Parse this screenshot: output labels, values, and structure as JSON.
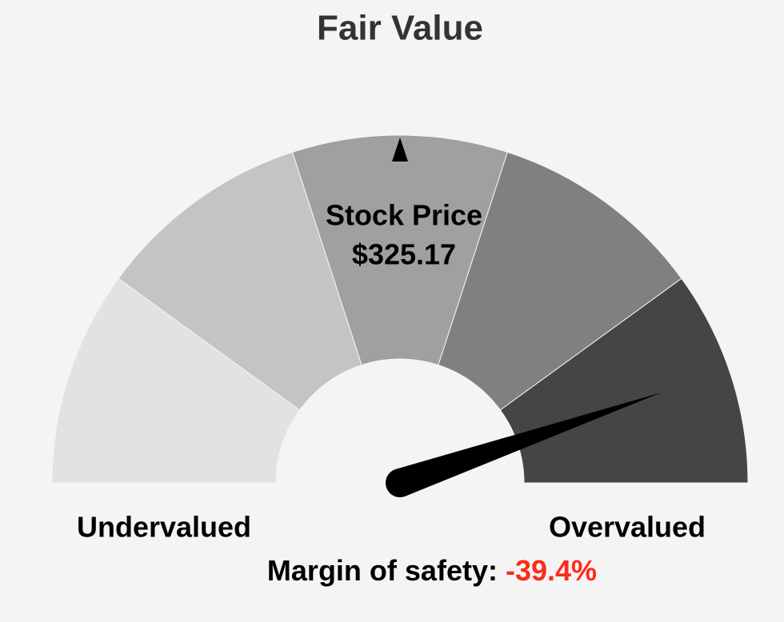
{
  "chart_data": {
    "type": "gauge",
    "title": "Fair Value",
    "bands": [
      "#e2e2e2",
      "#c4c4c4",
      "#a0a0a0",
      "#808080",
      "#454545"
    ],
    "lim": [
      50,
      -50
    ],
    "price_label": "Stock Price",
    "price": "$325.17",
    "left_label": "Undervalued",
    "right_label": "Overvalued",
    "needle": {
      "label": "Margin of safety:",
      "value": -39.4,
      "value_label": "-39.4%",
      "label_color": "#000000",
      "value_color": "#ff2a1a",
      "color": "#000000"
    }
  }
}
